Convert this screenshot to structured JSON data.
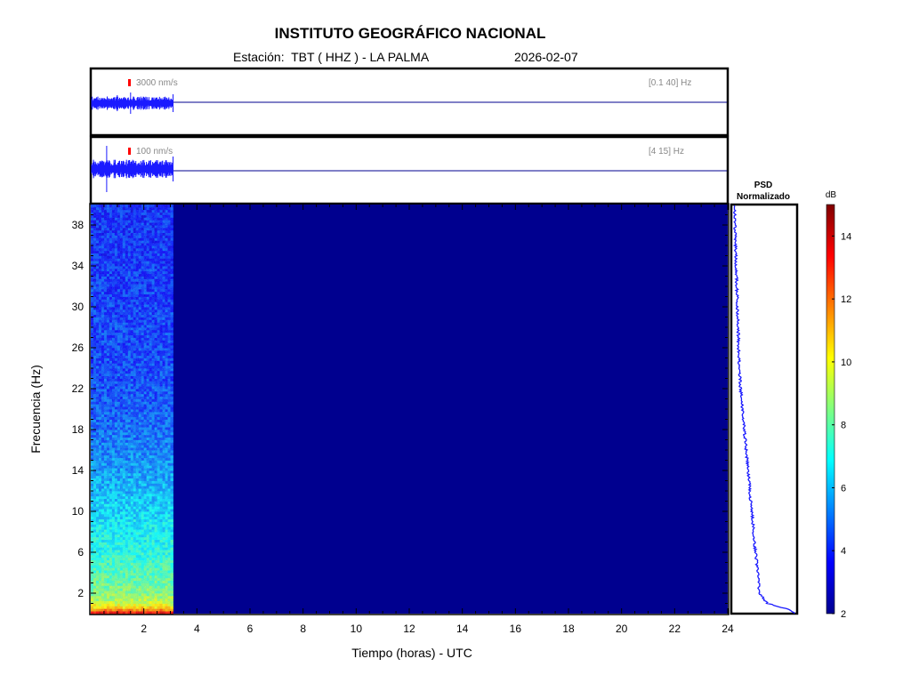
{
  "header": {
    "title": "INSTITUTO GEOGRÁFICO NACIONAL",
    "station": "Estación:  TBT ( HHZ ) - LA PALMA",
    "date": "2026-02-07"
  },
  "traces": [
    {
      "scale_label": "3000 nm/s",
      "band_label": "[0.1 40] Hz"
    },
    {
      "scale_label": "100 nm/s",
      "band_label": "[4 15] Hz"
    }
  ],
  "psd": {
    "title_line1": "PSD",
    "title_line2": "Normalizado"
  },
  "colorbar": {
    "unit": "dB",
    "min": 2,
    "max": 15,
    "ticks": [
      2,
      4,
      6,
      8,
      10,
      12,
      14
    ],
    "colormap": "jet"
  },
  "colors": {
    "background_fill": "#00008f",
    "trace": "#1a1aff",
    "psd_line": "#1a1aff",
    "marker": "#ff0000"
  },
  "chart_data": {
    "type": "heatmap",
    "title": "INSTITUTO GEOGRÁFICO NACIONAL",
    "xlabel": "Tiempo (horas) - UTC",
    "ylabel": "Frecuencia  (Hz)",
    "xlim": [
      0,
      24
    ],
    "ylim": [
      0,
      40
    ],
    "xticks": [
      2,
      4,
      6,
      8,
      10,
      12,
      14,
      16,
      18,
      20,
      22,
      24
    ],
    "yticks": [
      2,
      6,
      10,
      14,
      18,
      22,
      26,
      30,
      34,
      38
    ],
    "data_end_hour": 3.1,
    "spectrogram_profile": {
      "frequency_hz": [
        0,
        0.5,
        1,
        2,
        4,
        6,
        8,
        10,
        12,
        14,
        16,
        18,
        20,
        24,
        28,
        32,
        36,
        40
      ],
      "level_db": [
        14,
        11,
        9.5,
        8.5,
        7.8,
        7.2,
        6.8,
        6.4,
        6.0,
        5.6,
        5.2,
        4.9,
        4.6,
        4.4,
        4.3,
        4.2,
        4.1,
        4.0
      ]
    },
    "psd_normalized": {
      "frequency_hz": [
        0,
        0.5,
        1,
        2,
        4,
        6,
        8,
        10,
        12,
        14,
        16,
        18,
        20,
        22,
        24,
        26,
        28,
        30,
        32,
        34,
        36,
        38,
        40
      ],
      "value": [
        1.0,
        0.85,
        0.55,
        0.42,
        0.4,
        0.36,
        0.33,
        0.3,
        0.27,
        0.24,
        0.21,
        0.18,
        0.15,
        0.12,
        0.1,
        0.09,
        0.08,
        0.07,
        0.06,
        0.05,
        0.04,
        0.03,
        0.02
      ]
    }
  }
}
